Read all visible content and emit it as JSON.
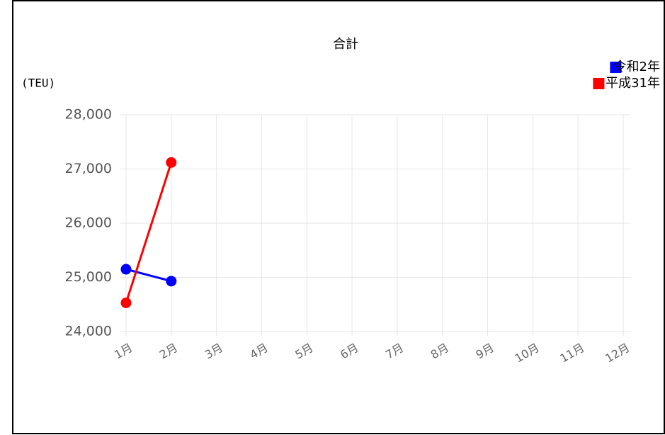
{
  "chart_data": {
    "type": "line",
    "title": "合計",
    "y_label": "(TEU)",
    "categories": [
      "1月",
      "2月",
      "3月",
      "4月",
      "5月",
      "6月",
      "7月",
      "8月",
      "9月",
      "10月",
      "11月",
      "12月"
    ],
    "series": [
      {
        "name": "令和2年",
        "color": "#0000ff",
        "values": [
          25150,
          24930,
          null,
          null,
          null,
          null,
          null,
          null,
          null,
          null,
          null,
          null
        ]
      },
      {
        "name": "平成31年",
        "color": "#ff0000",
        "values": [
          24530,
          27120,
          null,
          null,
          null,
          null,
          null,
          null,
          null,
          null,
          null,
          null
        ]
      }
    ],
    "ylim": [
      24000,
      28000
    ],
    "yticks": [
      {
        "value": 24000,
        "label": "24,000"
      },
      {
        "value": 25000,
        "label": "25,000"
      },
      {
        "value": 26000,
        "label": "26,000"
      },
      {
        "value": 27000,
        "label": "27,000"
      },
      {
        "value": 28000,
        "label": "28,000"
      }
    ],
    "grid": true,
    "legend": "top-right"
  }
}
